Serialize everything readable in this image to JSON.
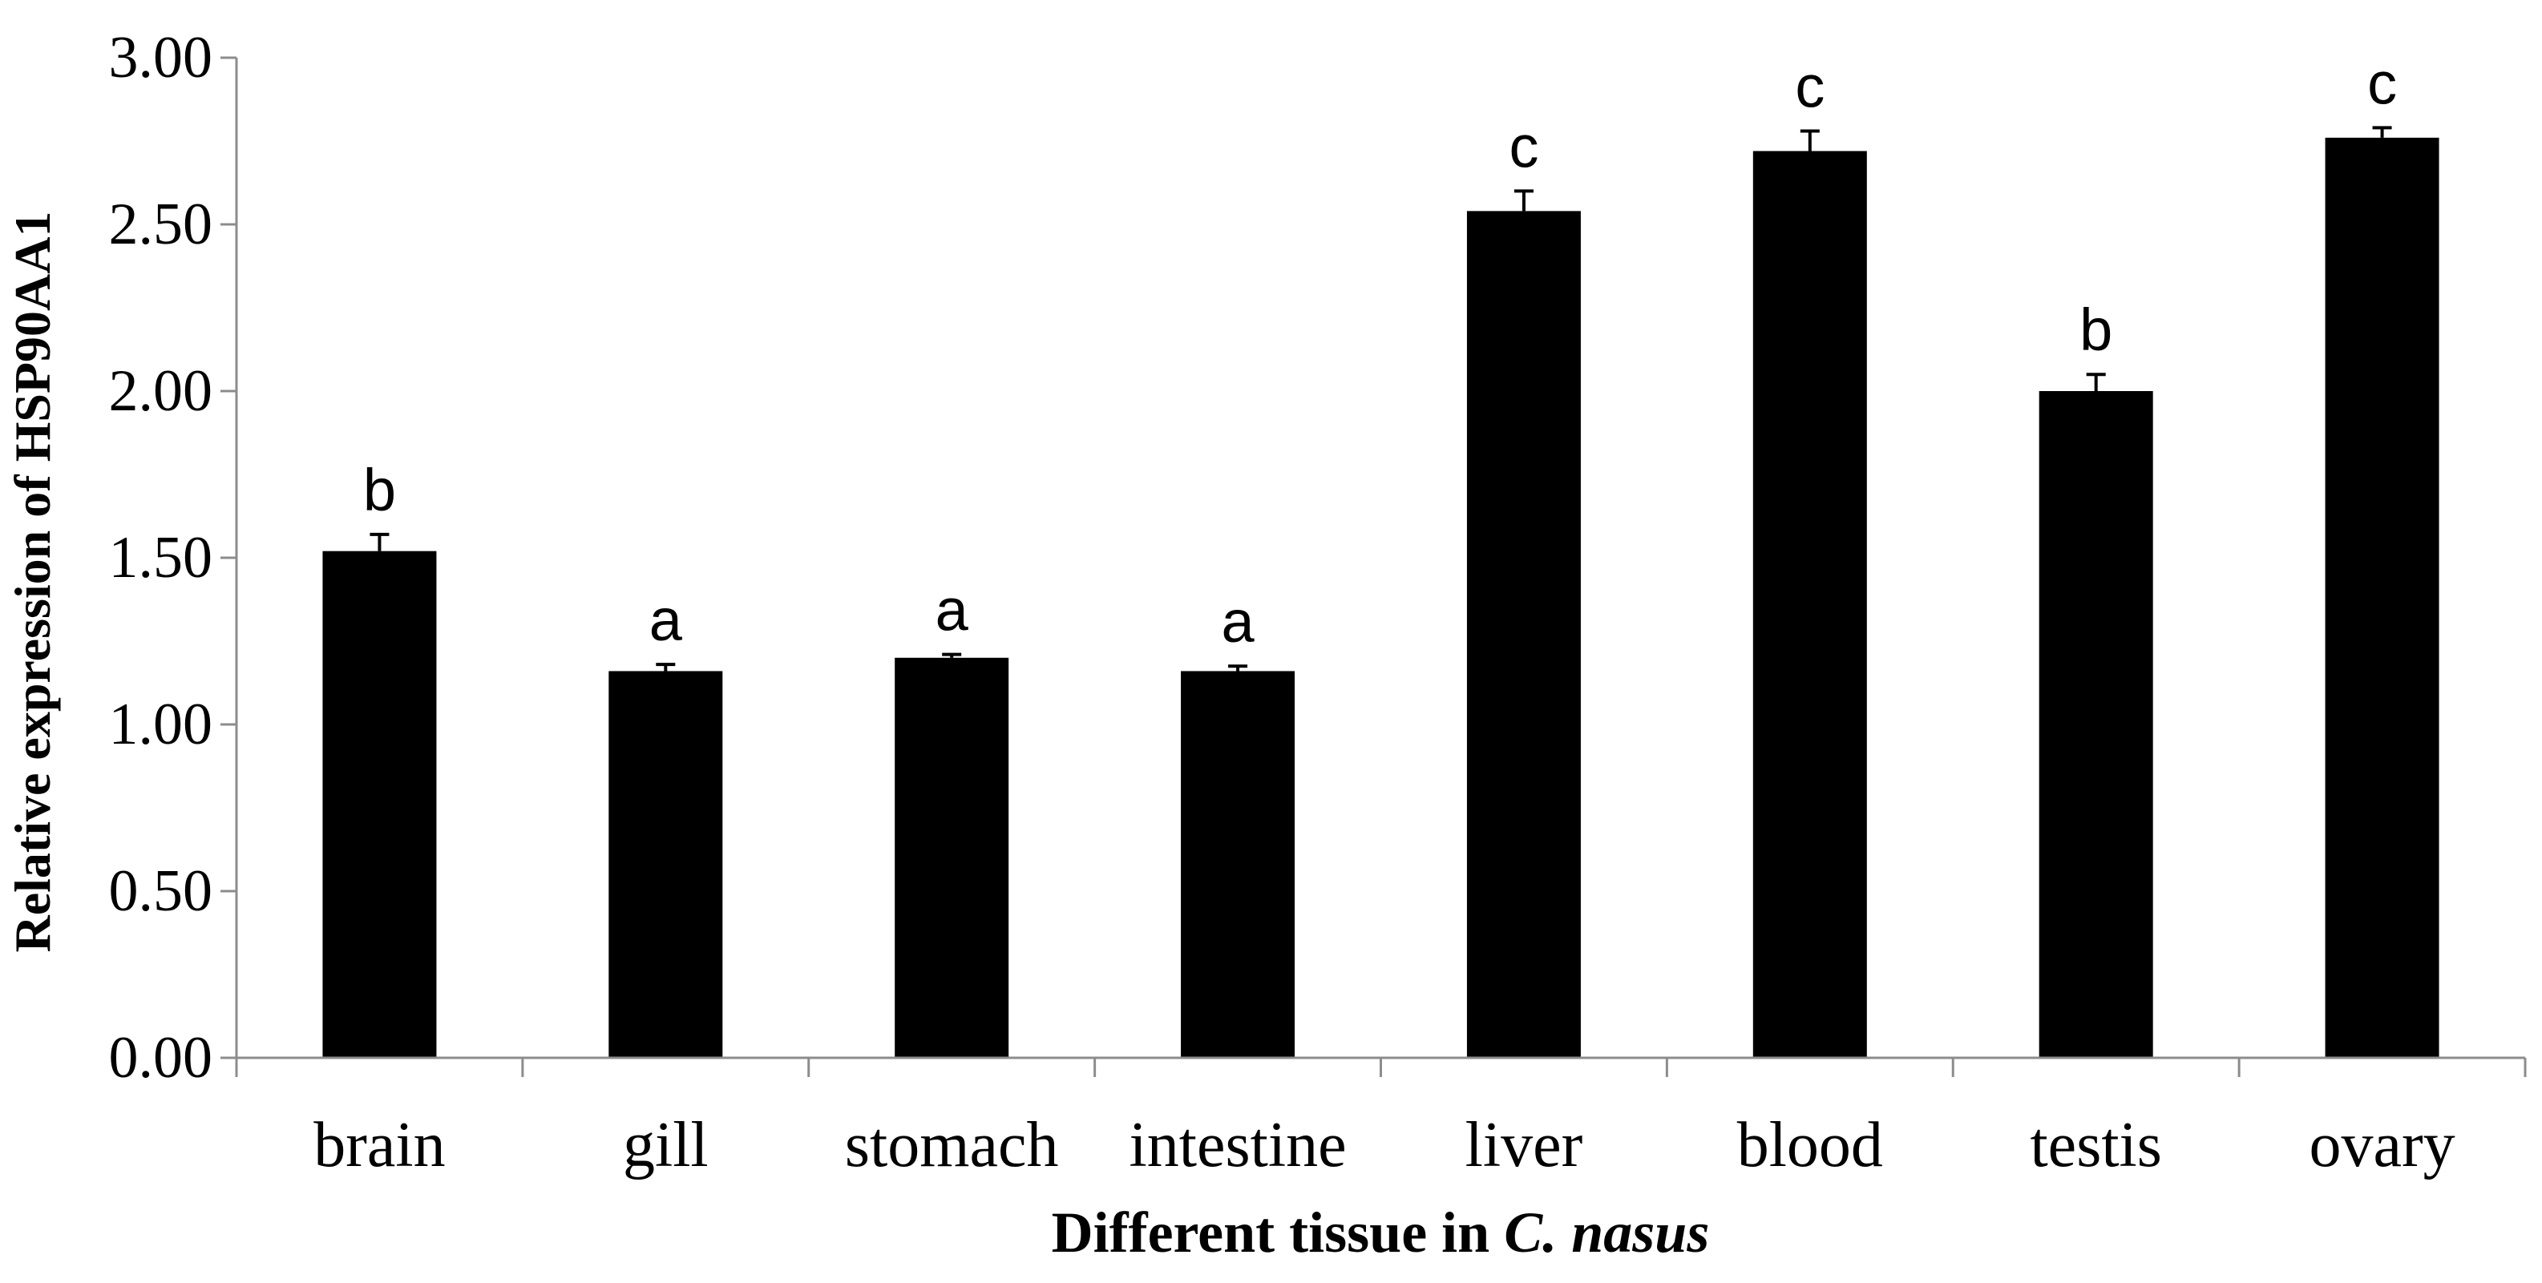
{
  "chart_data": {
    "type": "bar",
    "categories": [
      "brain",
      "gill",
      "stomach",
      "intestine",
      "liver",
      "blood",
      "testis",
      "ovary"
    ],
    "values": [
      1.52,
      1.16,
      1.2,
      1.16,
      2.54,
      2.72,
      2.0,
      2.76
    ],
    "errors": [
      0.05,
      0.02,
      0.01,
      0.015,
      0.06,
      0.06,
      0.05,
      0.03
    ],
    "significance": [
      "b",
      "a",
      "a",
      "a",
      "c",
      "c",
      "b",
      "c"
    ],
    "ylim": [
      0,
      3.0
    ],
    "yticks": [
      "0.00",
      "0.50",
      "1.00",
      "1.50",
      "2.00",
      "2.50",
      "3.00"
    ],
    "ylabel": "Relative expression of HSP90AA1",
    "xlabel_main": "Different tissue in",
    "xlabel_species": "C. nasus",
    "title": "",
    "grid": false,
    "bar_color": "#000000"
  }
}
